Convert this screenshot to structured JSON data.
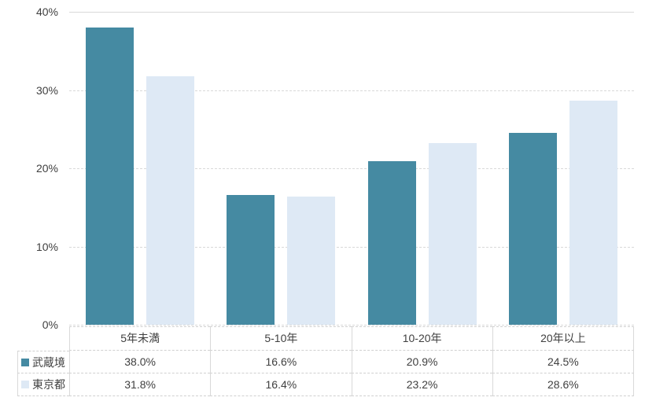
{
  "chart_data": {
    "type": "bar",
    "title": "",
    "xlabel": "",
    "ylabel": "",
    "categories": [
      "5年未満",
      "5-10年",
      "10-20年",
      "20年以上"
    ],
    "series": [
      {
        "name": "武蔵境",
        "values": [
          38.0,
          16.6,
          20.9,
          24.5
        ],
        "value_labels": [
          "38.0%",
          "16.6%",
          "20.9%",
          "24.5%"
        ],
        "color": "#458AA2"
      },
      {
        "name": "東京都",
        "values": [
          31.8,
          16.4,
          23.2,
          28.6
        ],
        "value_labels": [
          "31.8%",
          "16.4%",
          "23.2%",
          "28.6%"
        ],
        "color": "#DEE9F5"
      }
    ],
    "ylim": [
      0,
      40
    ],
    "yticks": [
      0,
      10,
      20,
      30,
      40
    ],
    "ytick_labels": [
      "0%",
      "10%",
      "20%",
      "30%",
      "40%"
    ],
    "grid": true,
    "legend_position": "data-table-left"
  },
  "style": {
    "background": "#FFFFFF",
    "text_color": "#404040",
    "gridline_color": "#D9D9D9",
    "table_border_color": "#D9D9D9"
  }
}
